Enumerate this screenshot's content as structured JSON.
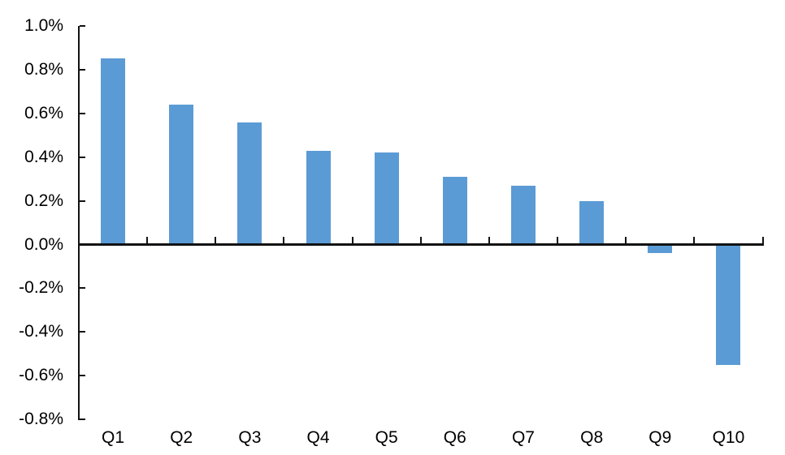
{
  "chart_data": {
    "type": "bar",
    "title": "",
    "xlabel": "",
    "ylabel": "",
    "unit": "%",
    "categories": [
      "Q1",
      "Q2",
      "Q3",
      "Q4",
      "Q5",
      "Q6",
      "Q7",
      "Q8",
      "Q9",
      "Q10"
    ],
    "values": [
      0.85,
      0.64,
      0.56,
      0.43,
      0.42,
      0.31,
      0.27,
      0.2,
      -0.04,
      -0.55
    ],
    "ylim": [
      -0.8,
      1.0
    ],
    "ytick_step": 0.2,
    "ytick_labels": [
      "1.0%",
      "0.8%",
      "0.6%",
      "0.4%",
      "0.2%",
      "0.0%",
      "-0.2%",
      "-0.4%",
      "-0.6%",
      "-0.8%"
    ],
    "grid": false,
    "legend_position": "none",
    "bar_color": "#5B9BD5",
    "axis_color": "#121212",
    "text_color": "#000000",
    "background_color": "#FFFFFF"
  }
}
